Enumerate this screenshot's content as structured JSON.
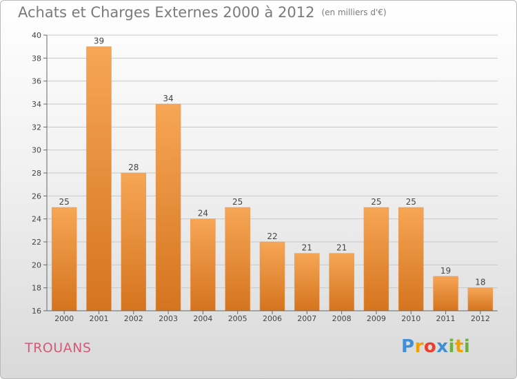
{
  "header": {
    "title": "Achats et Charges Externes 2000 à 2012",
    "unit": "(en milliers d'€)"
  },
  "footer": {
    "town": "TROUANS",
    "brand": "Proxiti",
    "brand_letters": [
      {
        "ch": "P",
        "color": "#3e8fd6"
      },
      {
        "ch": "r",
        "color": "#f0a000"
      },
      {
        "ch": "o",
        "color": "#e8402a"
      },
      {
        "ch": "x",
        "color": "#3e8fd6"
      },
      {
        "ch": "i",
        "color": "#6cb33e"
      },
      {
        "ch": "t",
        "color": "#f0a000"
      },
      {
        "ch": "i",
        "color": "#6cb33e"
      }
    ]
  },
  "colors": {
    "bar_top": "#f6a656",
    "bar_bottom": "#d5741e",
    "grid": "#c8c8c8",
    "town": "#d35a7a"
  },
  "chart_data": {
    "type": "bar",
    "title": "Achats et Charges Externes 2000 à 2012",
    "subtitle": "(en milliers d'€)",
    "xlabel": "",
    "ylabel": "",
    "categories": [
      "2000",
      "2001",
      "2002",
      "2003",
      "2004",
      "2005",
      "2006",
      "2007",
      "2008",
      "2009",
      "2010",
      "2011",
      "2012"
    ],
    "values": [
      25,
      39,
      28,
      34,
      24,
      25,
      22,
      21,
      21,
      25,
      25,
      19,
      18
    ],
    "ylim": [
      16,
      40
    ],
    "yticks": [
      16,
      18,
      20,
      22,
      24,
      26,
      28,
      30,
      32,
      34,
      36,
      38,
      40
    ],
    "grid": true,
    "legend": "none"
  }
}
